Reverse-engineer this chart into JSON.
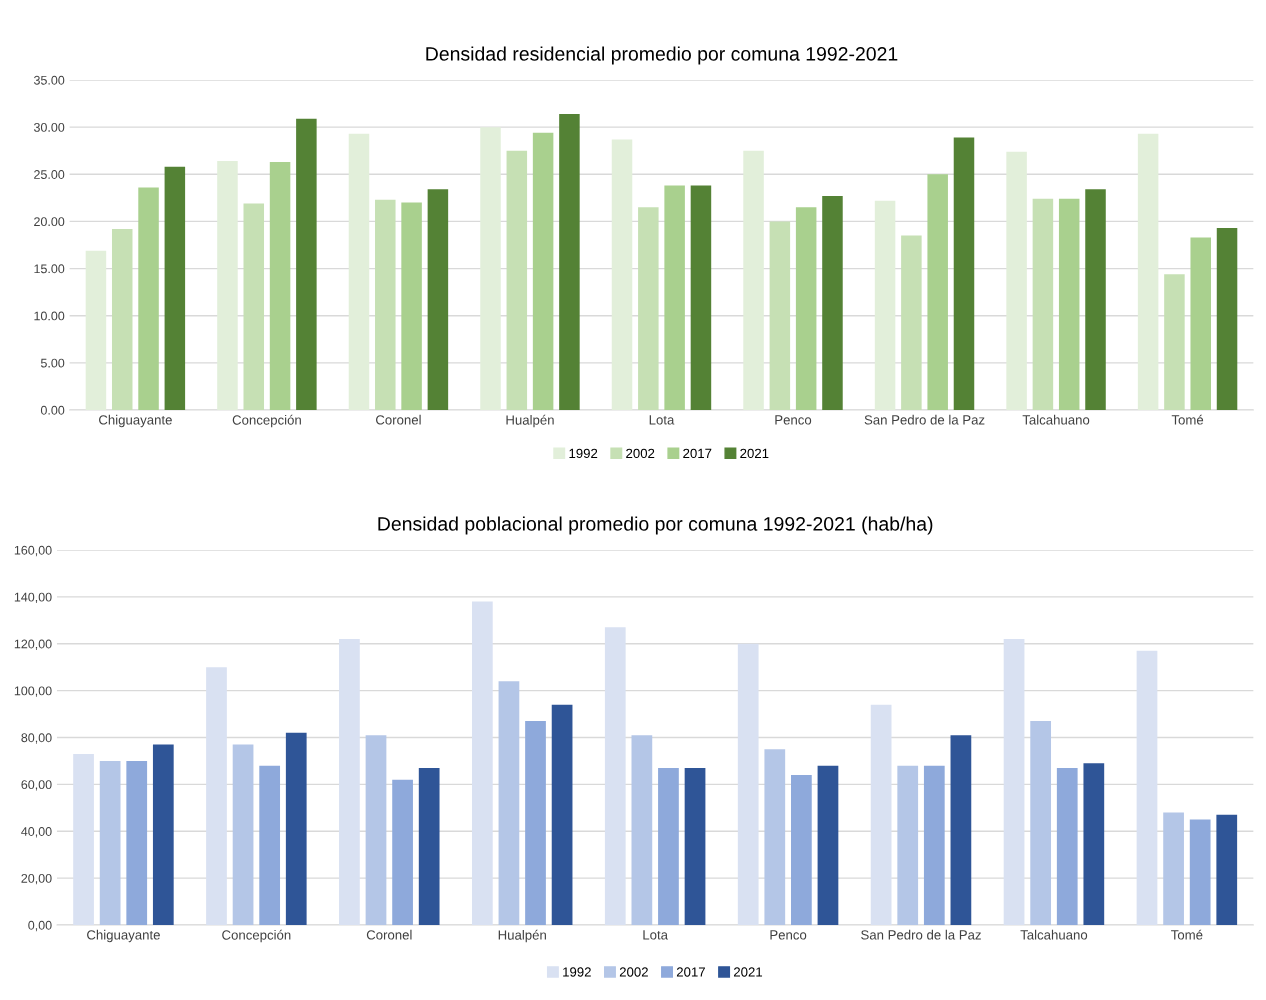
{
  "chart_data": [
    {
      "type": "bar",
      "title": "Densidad residencial promedio por comuna 1992-2021",
      "categories": [
        "Chiguayante",
        "Concepción",
        "Coronel",
        "Hualpén",
        "Lota",
        "Penco",
        "San Pedro de la Paz",
        "Talcahuano",
        "Tomé"
      ],
      "series": [
        {
          "name": "1992",
          "color": "#e2efda",
          "values": [
            16.9,
            26.4,
            29.3,
            30.0,
            28.7,
            27.5,
            22.2,
            27.4,
            29.3
          ]
        },
        {
          "name": "2002",
          "color": "#c6e0b4",
          "values": [
            19.2,
            21.9,
            22.3,
            27.5,
            21.5,
            20.0,
            18.5,
            22.4,
            14.4
          ]
        },
        {
          "name": "2017",
          "color": "#a9d08e",
          "values": [
            23.6,
            26.3,
            22.0,
            29.4,
            23.8,
            21.5,
            25.0,
            22.4,
            18.3
          ]
        },
        {
          "name": "2021",
          "color": "#548235",
          "values": [
            25.8,
            30.9,
            23.4,
            31.4,
            23.8,
            22.7,
            28.9,
            23.4,
            19.3
          ]
        }
      ],
      "ylim": [
        0,
        35
      ],
      "yticks": [
        {
          "value": 0,
          "label": "0.00"
        },
        {
          "value": 5,
          "label": "5.00"
        },
        {
          "value": 10,
          "label": "10.00"
        },
        {
          "value": 15,
          "label": "15.00"
        },
        {
          "value": 20,
          "label": "20.00"
        },
        {
          "value": 25,
          "label": "25.00"
        },
        {
          "value": 30,
          "label": "30.00"
        },
        {
          "value": 35,
          "label": "35.00"
        }
      ],
      "grid": "y",
      "legend": "bottom"
    },
    {
      "type": "bar",
      "title": "Densidad poblacional promedio por comuna 1992-2021 (hab/ha)",
      "categories": [
        "Chiguayante",
        "Concepción",
        "Coronel",
        "Hualpén",
        "Lota",
        "Penco",
        "San Pedro de la Paz",
        "Talcahuano",
        "Tomé"
      ],
      "series": [
        {
          "name": "1992",
          "color": "#d9e1f2",
          "values": [
            73,
            110,
            122,
            138,
            127,
            120,
            94,
            122,
            117
          ]
        },
        {
          "name": "2002",
          "color": "#b4c6e7",
          "values": [
            70,
            77,
            81,
            104,
            81,
            75,
            68,
            87,
            48
          ]
        },
        {
          "name": "2017",
          "color": "#8ea9db",
          "values": [
            70,
            68,
            62,
            87,
            67,
            64,
            68,
            67,
            45
          ]
        },
        {
          "name": "2021",
          "color": "#2f5597",
          "values": [
            77,
            82,
            67,
            94,
            67,
            68,
            81,
            69,
            47
          ]
        }
      ],
      "ylim": [
        0,
        160
      ],
      "yticks": [
        {
          "value": 0,
          "label": "0,00"
        },
        {
          "value": 20,
          "label": "20,00"
        },
        {
          "value": 40,
          "label": "40,00"
        },
        {
          "value": 60,
          "label": "60,00"
        },
        {
          "value": 80,
          "label": "80,00"
        },
        {
          "value": 100,
          "label": "100,00"
        },
        {
          "value": 120,
          "label": "120,00"
        },
        {
          "value": 140,
          "label": "140,00"
        },
        {
          "value": 160,
          "label": "160,00"
        }
      ],
      "grid": "y",
      "legend": "bottom"
    }
  ]
}
